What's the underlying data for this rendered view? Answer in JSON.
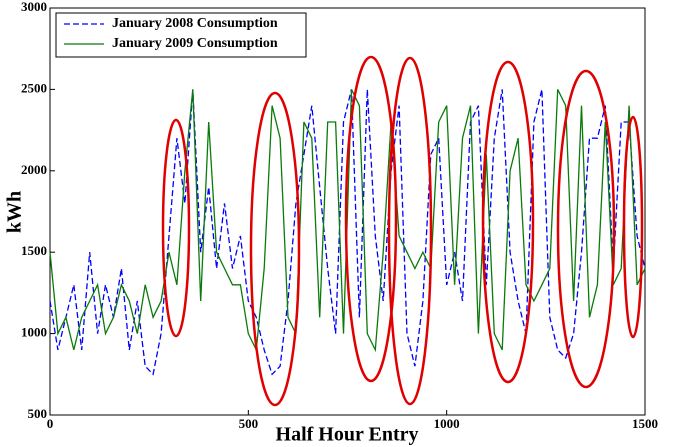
{
  "chart_data": {
    "type": "line",
    "xlabel": "Half Hour Entry",
    "ylabel": "kWh",
    "x": [
      0,
      20,
      40,
      60,
      80,
      100,
      120,
      140,
      160,
      180,
      200,
      220,
      240,
      260,
      280,
      300,
      320,
      340,
      360,
      380,
      400,
      420,
      440,
      460,
      480,
      500,
      520,
      540,
      560,
      580,
      600,
      620,
      640,
      660,
      680,
      700,
      720,
      740,
      760,
      780,
      800,
      820,
      840,
      860,
      880,
      900,
      920,
      940,
      960,
      980,
      1000,
      1020,
      1040,
      1060,
      1080,
      1100,
      1120,
      1140,
      1160,
      1180,
      1200,
      1220,
      1240,
      1260,
      1280,
      1300,
      1320,
      1340,
      1360,
      1380,
      1400,
      1420,
      1440,
      1460,
      1480,
      1500
    ],
    "series": [
      {
        "name": "January 2008 Consumption",
        "color": "#0000ff",
        "dash": true,
        "values": [
          1200,
          900,
          1100,
          1300,
          900,
          1500,
          1000,
          1300,
          1100,
          1400,
          900,
          1200,
          800,
          750,
          1000,
          1600,
          2200,
          1800,
          2500,
          1500,
          1900,
          1400,
          1800,
          1400,
          1600,
          1200,
          1100,
          900,
          750,
          800,
          1200,
          1800,
          2100,
          2400,
          1900,
          1400,
          1000,
          2300,
          2500,
          1100,
          2500,
          1600,
          1200,
          2000,
          2400,
          1000,
          800,
          1200,
          2100,
          2200,
          1300,
          1500,
          1200,
          2300,
          2400,
          1300,
          2200,
          2500,
          1500,
          1200,
          1000,
          2300,
          2500,
          1100,
          900,
          850,
          1000,
          1500,
          2200,
          2200,
          2400,
          1400,
          2300,
          2300,
          1600,
          1400
        ]
      },
      {
        "name": "January 2009 Consumption",
        "color": "#0a7a0a",
        "dash": false,
        "values": [
          1500,
          1000,
          1100,
          900,
          1100,
          1200,
          1300,
          1000,
          1100,
          1300,
          1200,
          1000,
          1300,
          1100,
          1200,
          1500,
          1300,
          2000,
          2500,
          1200,
          2300,
          1500,
          1400,
          1300,
          1300,
          1000,
          900,
          1400,
          2400,
          2200,
          1100,
          1000,
          2300,
          2200,
          1100,
          2300,
          2300,
          1000,
          2500,
          2400,
          1000,
          900,
          1500,
          2300,
          1600,
          1500,
          1400,
          1500,
          1400,
          2300,
          2400,
          1300,
          2200,
          2400,
          1000,
          2100,
          1000,
          900,
          2000,
          2200,
          1300,
          1200,
          1300,
          1400,
          2500,
          2400,
          1200,
          2400,
          1100,
          1300,
          2300,
          1300,
          1400,
          2400,
          1300,
          1400
        ]
      }
    ],
    "xlim": [
      0,
      1500
    ],
    "xticks": [
      0,
      500,
      1000,
      1500
    ],
    "ylim": [
      500,
      3000
    ],
    "yticks": [
      500,
      1000,
      1500,
      2000,
      2500,
      3000
    ],
    "legend": "upper left"
  }
}
